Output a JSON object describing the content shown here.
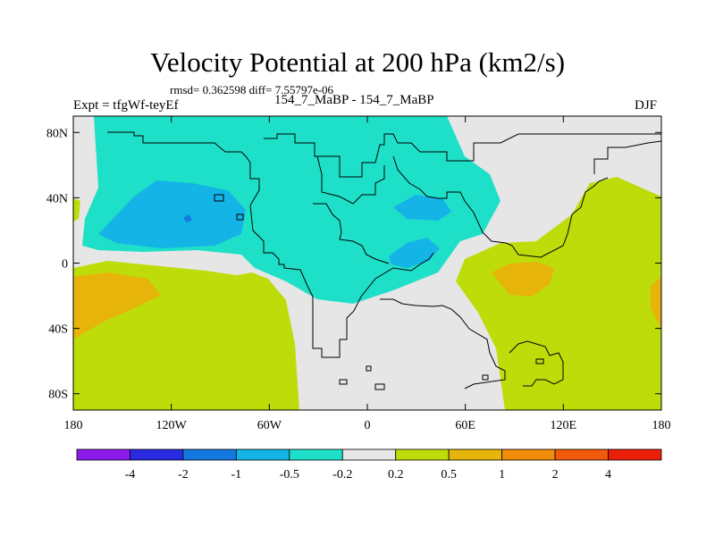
{
  "chart_data": {
    "type": "heatmap",
    "title": "Velocity Potential at 200 hPa (km2/s)",
    "stats_line": "rmsd= 0.362598 diff= 7.55797e-06",
    "left_label": "Expt = tfgWf-teyEf",
    "center_label": "154_7_MaBP - 154_7_MaBP",
    "right_label": "DJF",
    "projection": "cylindrical equidistant",
    "x_range": [
      -180,
      180
    ],
    "y_range": [
      -90,
      90
    ],
    "x_ticks": [
      {
        "value": -180,
        "label": "180"
      },
      {
        "value": -120,
        "label": "120W"
      },
      {
        "value": -60,
        "label": "60W"
      },
      {
        "value": 0,
        "label": "0"
      },
      {
        "value": 60,
        "label": "60E"
      },
      {
        "value": 120,
        "label": "120E"
      },
      {
        "value": 180,
        "label": "180"
      }
    ],
    "y_ticks": [
      {
        "value": 80,
        "label": "80N"
      },
      {
        "value": 40,
        "label": "40N"
      },
      {
        "value": 0,
        "label": "0"
      },
      {
        "value": -40,
        "label": "40S"
      },
      {
        "value": -80,
        "label": "80S"
      }
    ],
    "colorbar": {
      "colors": [
        "#8c1aeb",
        "#2a2ae0",
        "#1478e0",
        "#14b4e6",
        "#1ee0c8",
        "#e6e6e6",
        "#bedc0a",
        "#e6b40a",
        "#f08c0a",
        "#f05a0a",
        "#eb1e0a"
      ],
      "labels": [
        "-4",
        "-2",
        "-1",
        "-0.5",
        "-0.2",
        "0.2",
        "0.5",
        "1",
        "2",
        "4"
      ]
    },
    "regions": [
      {
        "level": "0.2 to 0.5",
        "color": "#bedc0a",
        "description": "southern and eastern positive band"
      },
      {
        "level": "-0.2 to 0.2",
        "color": "#e6e6e6",
        "description": "near-zero background"
      },
      {
        "level": "-0.5 to -0.2",
        "color": "#1ee0c8",
        "description": "northern negative band"
      },
      {
        "level": "-1 to -0.5",
        "color": "#14b4e6",
        "description": "negative centers"
      },
      {
        "level": "-2 to -1",
        "color": "#1478e0",
        "description": "minimum near 110W 25N"
      },
      {
        "level": "0.5 to 1",
        "color": "#e6b40a",
        "description": "positive centers"
      }
    ]
  }
}
